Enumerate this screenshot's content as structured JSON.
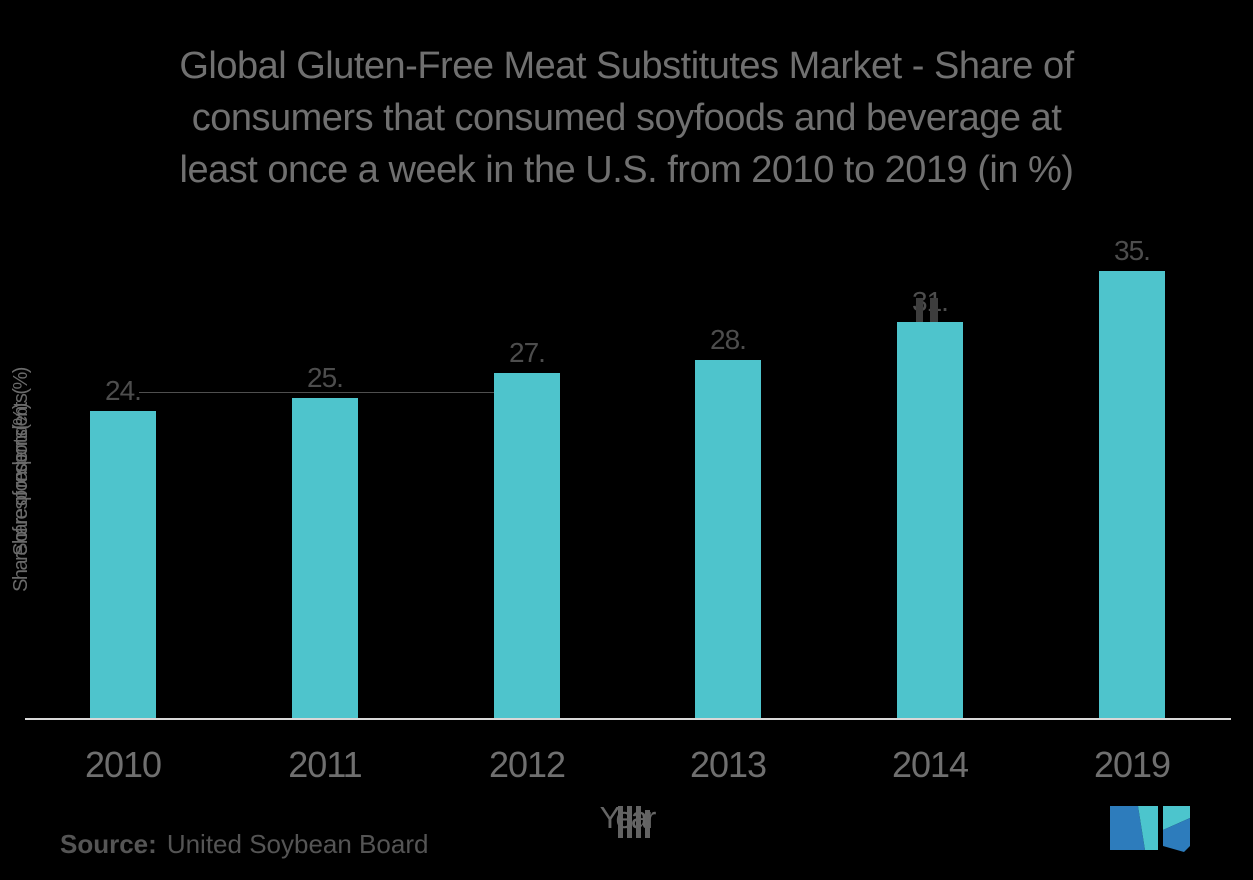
{
  "title": {
    "line1": "Global Gluten-Free Meat Substitutes Market - Share of",
    "line2": "consumers that consumed soyfoods and beverage at",
    "line3": "least once a week in the U.S. from 2010 to 2019 (in %)"
  },
  "chart_data": {
    "type": "bar",
    "categories": [
      "2010",
      "2011",
      "2012",
      "2013",
      "2014",
      "2019"
    ],
    "values": [
      24,
      25,
      27,
      28,
      31,
      35
    ],
    "value_labels": [
      "24.",
      "25.",
      "27.",
      "28.",
      "31.",
      "35."
    ],
    "title": "Global Gluten-Free Meat Substitutes Market - Share of consumers that consumed soyfoods and beverage at least once a week in the U.S. from 2010 to 2019 (in %)",
    "xlabel": "Year",
    "ylabel": "Share of respondents(%)",
    "ylim": [
      0,
      40
    ],
    "bar_color": "#4ec4cc",
    "grid": false,
    "legend": "none"
  },
  "source": {
    "label": "Source:",
    "value": "United Soybean Board"
  },
  "logo": {
    "name": "mordor-intelligence-logo",
    "blue": "#2d7cbc",
    "teal": "#4cc5cd"
  },
  "colors": {
    "background": "#000000",
    "title_text": "#707070",
    "value_label_text": "#4d4d4d",
    "tick_text": "#6f6f6f",
    "axis_line": "#d8d8d8"
  }
}
